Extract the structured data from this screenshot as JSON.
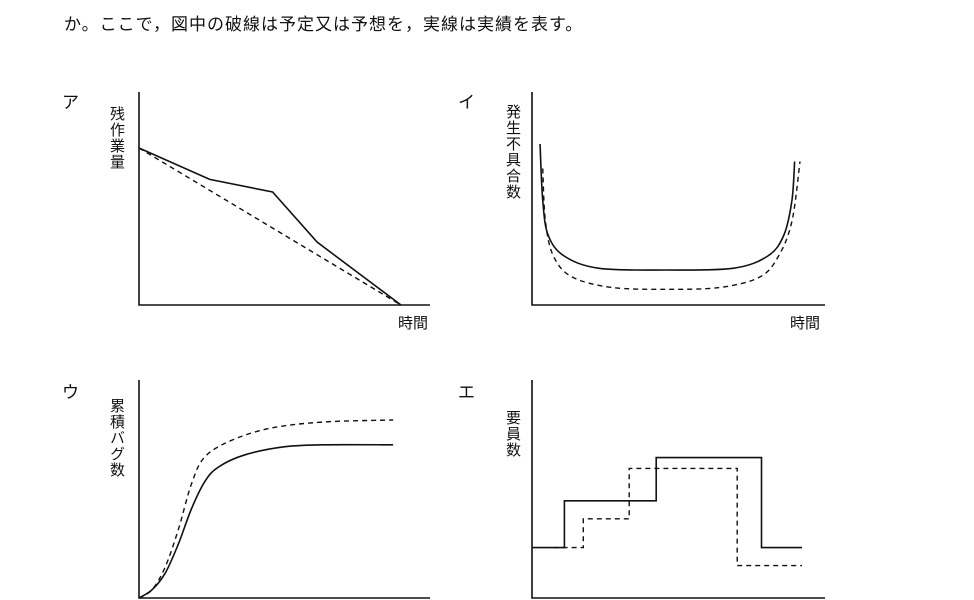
{
  "intro_text": "か。ここで，図中の破線は予定又は予想を，実線は実績を表す。",
  "chart_data": [
    {
      "panel": "ア",
      "type": "line",
      "ylabel": "残作業量",
      "xlabel": "時間",
      "xlim": [
        0,
        100
      ],
      "ylim": [
        0,
        100
      ],
      "series": [
        {
          "style": "dashed",
          "points": [
            [
              0,
              100
            ],
            [
              100,
              0
            ]
          ]
        },
        {
          "style": "solid",
          "points": [
            [
              0,
              100
            ],
            [
              27,
              80
            ],
            [
              51,
              72
            ],
            [
              68,
              40
            ],
            [
              100,
              0
            ]
          ]
        }
      ]
    },
    {
      "panel": "イ",
      "type": "line",
      "ylabel": "発生不具合数",
      "xlabel": "時間",
      "xlim": [
        0,
        100
      ],
      "ylim": [
        0,
        100
      ],
      "series": [
        {
          "style": "solid",
          "points": [
            [
              3,
              92
            ],
            [
              4,
              60
            ],
            [
              6,
              40
            ],
            [
              12,
              28
            ],
            [
              25,
              21
            ],
            [
              50,
              20
            ],
            [
              75,
              21
            ],
            [
              88,
              28
            ],
            [
              94,
              40
            ],
            [
              97,
              60
            ],
            [
              98,
              82
            ]
          ]
        },
        {
          "style": "dashed",
          "points": [
            [
              4,
              78
            ],
            [
              5,
              48
            ],
            [
              8,
              28
            ],
            [
              15,
              16
            ],
            [
              30,
              10
            ],
            [
              50,
              9
            ],
            [
              70,
              10
            ],
            [
              85,
              16
            ],
            [
              92,
              28
            ],
            [
              97,
              48
            ],
            [
              100,
              82
            ]
          ]
        }
      ]
    },
    {
      "panel": "ウ",
      "type": "line",
      "ylabel": "累積バグ数",
      "xlabel": "",
      "xlim": [
        0,
        100
      ],
      "ylim": [
        0,
        100
      ],
      "series": [
        {
          "style": "dashed",
          "points": [
            [
              0,
              0
            ],
            [
              5,
              4
            ],
            [
              10,
              15
            ],
            [
              15,
              33
            ],
            [
              20,
              55
            ],
            [
              25,
              68
            ],
            [
              35,
              76
            ],
            [
              50,
              82
            ],
            [
              70,
              85
            ],
            [
              97,
              86
            ]
          ]
        },
        {
          "style": "solid",
          "points": [
            [
              0,
              0
            ],
            [
              5,
              4
            ],
            [
              10,
              12
            ],
            [
              15,
              26
            ],
            [
              20,
              43
            ],
            [
              25,
              56
            ],
            [
              30,
              63
            ],
            [
              40,
              69
            ],
            [
              55,
              73
            ],
            [
              70,
              74
            ],
            [
              97,
              74
            ]
          ]
        }
      ]
    },
    {
      "panel": "エ",
      "type": "line",
      "ylabel": "要員数",
      "xlabel": "",
      "xlim": [
        0,
        100
      ],
      "ylim": [
        0,
        100
      ],
      "series": [
        {
          "style": "solid",
          "points": [
            [
              0,
              28
            ],
            [
              12,
              28
            ],
            [
              12,
              54
            ],
            [
              46,
              54
            ],
            [
              46,
              78
            ],
            [
              85,
              78
            ],
            [
              85,
              28
            ],
            [
              100,
              28
            ]
          ]
        },
        {
          "style": "dashed",
          "points": [
            [
              8,
              28
            ],
            [
              19,
              28
            ],
            [
              19,
              44
            ],
            [
              36,
              44
            ],
            [
              36,
              72
            ],
            [
              76,
              72
            ],
            [
              76,
              18
            ],
            [
              100,
              18
            ]
          ]
        }
      ]
    }
  ]
}
